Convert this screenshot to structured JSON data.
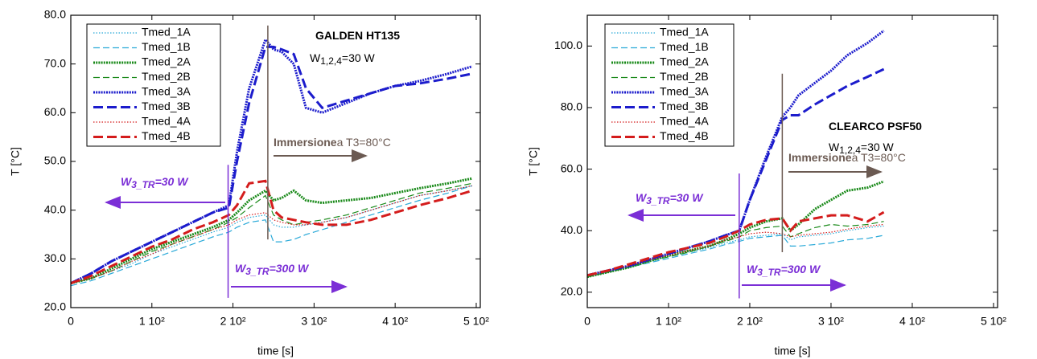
{
  "chart_data": [
    {
      "type": "line",
      "xlabel": "time [s]",
      "ylabel": "T [°C]",
      "xlim": [
        0,
        505
      ],
      "ylim": [
        20,
        80
      ],
      "xticks": [
        0,
        {
          "value": 100,
          "label": "1 10²"
        },
        {
          "value": 200,
          "label": "2 10²"
        },
        {
          "value": 300,
          "label": "3 10²"
        },
        {
          "value": 400,
          "label": "4 10²"
        },
        {
          "value": 500,
          "label": "5 10²"
        }
      ],
      "yticks": [
        {
          "value": 20,
          "label": "20.0"
        },
        {
          "value": 30,
          "label": "30.0"
        },
        {
          "value": 40,
          "label": "40.0"
        },
        {
          "value": 50,
          "label": "50.0"
        },
        {
          "value": 60,
          "label": "60.0"
        },
        {
          "value": 70,
          "label": "70.0"
        },
        {
          "value": 80,
          "label": "80.0"
        }
      ],
      "x": [
        0,
        25,
        50,
        75,
        100,
        125,
        150,
        175,
        195,
        205,
        220,
        240,
        250,
        260,
        275,
        290,
        310,
        340,
        370,
        400,
        430,
        465,
        495
      ],
      "series": [
        {
          "name": "Tmed_1A",
          "color": "#29a9d8",
          "style": "dotted-thin",
          "values": [
            25,
            26,
            27.5,
            29,
            31,
            32.5,
            34,
            35.5,
            36.5,
            37.5,
            38.5,
            39,
            37,
            36.5,
            36.5,
            37,
            37.5,
            38.5,
            40,
            41.5,
            43,
            44,
            45
          ]
        },
        {
          "name": "Tmed_1B",
          "color": "#29a9d8",
          "style": "dashed-thin",
          "values": [
            24.5,
            25.5,
            27,
            28.5,
            30,
            31.5,
            33,
            34.5,
            35.5,
            36.5,
            37.5,
            38,
            33.5,
            33.5,
            34,
            35,
            36,
            37.5,
            39,
            40.5,
            42,
            43.5,
            45
          ]
        },
        {
          "name": "Tmed_2A",
          "color": "#1a8a1a",
          "style": "dotted-thick",
          "values": [
            25,
            26,
            28,
            30,
            32,
            33.5,
            35,
            36.5,
            38,
            39.5,
            42,
            44,
            42,
            42.5,
            44,
            42,
            41.5,
            42,
            42.5,
            43.5,
            44.5,
            45.5,
            46.5
          ]
        },
        {
          "name": "Tmed_2B",
          "color": "#1a8a1a",
          "style": "dashed-thin",
          "values": [
            25,
            26,
            27.5,
            29.5,
            31.5,
            33,
            34.5,
            36,
            37.5,
            38.5,
            40.5,
            43,
            39,
            38,
            37,
            37.5,
            38,
            39,
            40.5,
            42,
            43.5,
            44.5,
            45.5
          ]
        },
        {
          "name": "Tmed_3A",
          "color": "#1c1ccc",
          "style": "dotted-thick",
          "values": [
            25,
            27,
            29.5,
            31.5,
            33.5,
            35.5,
            37.5,
            39.5,
            41,
            52,
            65,
            75,
            73,
            72.5,
            70,
            61,
            60,
            62,
            64,
            65.5,
            66.5,
            68,
            69.5
          ]
        },
        {
          "name": "Tmed_3B",
          "color": "#1c1ccc",
          "style": "dashed-thick",
          "values": [
            25,
            27,
            29.5,
            31.5,
            33.5,
            35.5,
            37.5,
            39.5,
            40.5,
            50,
            62,
            73.5,
            73.5,
            73,
            72,
            65,
            61,
            62.5,
            64,
            65.5,
            66,
            67,
            68
          ]
        },
        {
          "name": "Tmed_4A",
          "color": "#d41c1c",
          "style": "dotted-thin",
          "values": [
            25,
            26,
            27.5,
            29.5,
            31,
            33,
            34.5,
            36,
            37,
            38,
            39,
            39.5,
            38,
            37.5,
            37,
            37,
            37.5,
            38.5,
            40,
            41.5,
            43,
            44,
            45
          ]
        },
        {
          "name": "Tmed_4B",
          "color": "#d41c1c",
          "style": "dashed-thick",
          "values": [
            25,
            26.5,
            28.5,
            30.5,
            32.5,
            34,
            36,
            37.5,
            39,
            41,
            45.5,
            46,
            40,
            38.5,
            38,
            37.5,
            37,
            37,
            38,
            39.5,
            41,
            42.5,
            44
          ]
        }
      ],
      "event_lines": [
        {
          "x": 194,
          "from": 22,
          "to": 49.3,
          "color": "#7b2fd6"
        },
        {
          "x": 243,
          "from": 34,
          "to": 77.9,
          "color": "#6b5a52"
        }
      ],
      "annotations": [
        {
          "color": "#000000",
          "bold": true,
          "parts": [
            {
              "text": "GALDEN HT135"
            }
          ]
        },
        {
          "color": "#000000",
          "parts": [
            {
              "text": "W"
            },
            {
              "text": "1,2,4",
              "sub": true
            },
            {
              "text": "=30 W"
            }
          ]
        },
        {
          "color": "#6b5a52",
          "parts": [
            {
              "text": "Immersione",
              "bold": true
            },
            {
              "text": "a T3=80°C"
            }
          ]
        },
        {
          "color": "#7b2fd6",
          "bold": true,
          "italic": true,
          "parts": [
            {
              "text": "W"
            },
            {
              "text": "3_TR",
              "sub": true
            },
            {
              "text": "=30 W"
            }
          ]
        },
        {
          "color": "#7b2fd6",
          "bold": true,
          "italic": true,
          "parts": [
            {
              "text": "W"
            },
            {
              "text": "3_TR",
              "sub": true
            },
            {
              "text": "=300 W"
            }
          ]
        }
      ]
    },
    {
      "type": "line",
      "xlabel": "time [s]",
      "ylabel": "T [°C]",
      "xlim": [
        0,
        505
      ],
      "ylim": [
        15,
        110
      ],
      "xticks": [
        0,
        {
          "value": 100,
          "label": "1 10²"
        },
        {
          "value": 200,
          "label": "2 10²"
        },
        {
          "value": 300,
          "label": "3 10²"
        },
        {
          "value": 400,
          "label": "4 10²"
        },
        {
          "value": 500,
          "label": "5 10²"
        }
      ],
      "yticks": [
        {
          "value": 20,
          "label": "20.0"
        },
        {
          "value": 40,
          "label": "40.0"
        },
        {
          "value": 60,
          "label": "60.0"
        },
        {
          "value": 80,
          "label": "80.0"
        },
        {
          "value": 100,
          "label": "100.0"
        }
      ],
      "x": [
        0,
        25,
        50,
        75,
        100,
        125,
        150,
        170,
        187,
        200,
        220,
        240,
        250,
        260,
        280,
        300,
        320,
        345,
        365
      ],
      "series": [
        {
          "name": "Tmed_1A",
          "color": "#29a9d8",
          "style": "dotted-thin",
          "values": [
            25,
            26.5,
            28,
            30,
            31.5,
            33,
            34.5,
            36,
            37,
            38,
            38.5,
            39,
            37,
            38,
            38.5,
            39,
            40,
            41,
            41.5
          ]
        },
        {
          "name": "Tmed_1B",
          "color": "#29a9d8",
          "style": "dashed-thin",
          "values": [
            25,
            26.5,
            28,
            29.5,
            31,
            32.5,
            34,
            35.5,
            36.5,
            37.5,
            38,
            38.5,
            35,
            35,
            35.5,
            36,
            37,
            37.5,
            38.5
          ]
        },
        {
          "name": "Tmed_2A",
          "color": "#1a8a1a",
          "style": "dotted-thick",
          "values": [
            25,
            26.5,
            28,
            30,
            32,
            33.5,
            35,
            37,
            39,
            41,
            43,
            44,
            40,
            42,
            47,
            50,
            53,
            54,
            56
          ]
        },
        {
          "name": "Tmed_2B",
          "color": "#1a8a1a",
          "style": "dashed-thin",
          "values": [
            25,
            26.5,
            28,
            30,
            31.5,
            33,
            35,
            36.5,
            38,
            40,
            41,
            41.5,
            38,
            39,
            41,
            42,
            41.5,
            42,
            43
          ]
        },
        {
          "name": "Tmed_3A",
          "color": "#1c1ccc",
          "style": "dotted-thick",
          "values": [
            25.5,
            27,
            28.5,
            30.5,
            32.5,
            34.5,
            36.5,
            38.5,
            40,
            50,
            64,
            77,
            80,
            84,
            88,
            92,
            97,
            101,
            105
          ]
        },
        {
          "name": "Tmed_3B",
          "color": "#1c1ccc",
          "style": "dashed-thick",
          "values": [
            25.5,
            27,
            28.5,
            30.5,
            32.5,
            34.5,
            36.5,
            38.5,
            40,
            50,
            63,
            76,
            77.5,
            77.5,
            81,
            84,
            87,
            90,
            92.5
          ]
        },
        {
          "name": "Tmed_4A",
          "color": "#d41c1c",
          "style": "dotted-thin",
          "values": [
            25.5,
            27,
            28.5,
            30.5,
            32,
            33.5,
            35,
            37,
            38,
            39,
            39.5,
            39,
            38,
            38.5,
            39,
            39.5,
            40.5,
            41.5,
            42
          ]
        },
        {
          "name": "Tmed_4B",
          "color": "#d41c1c",
          "style": "dashed-thick",
          "values": [
            25.5,
            27,
            29,
            31,
            33,
            34.5,
            36,
            38,
            40,
            42,
            43.5,
            44,
            40,
            43,
            44,
            45,
            45,
            43,
            46
          ]
        }
      ],
      "event_lines": [
        {
          "x": 187,
          "from": 18,
          "to": 58.6,
          "color": "#7b2fd6"
        },
        {
          "x": 240,
          "from": 33,
          "to": 91,
          "color": "#6b5a52"
        }
      ],
      "annotations": [
        {
          "color": "#000000",
          "bold": true,
          "parts": [
            {
              "text": "CLEARCO  PSF50"
            }
          ]
        },
        {
          "color": "#000000",
          "parts": [
            {
              "text": "W"
            },
            {
              "text": "1,2,4",
              "sub": true
            },
            {
              "text": "=30 W"
            }
          ]
        },
        {
          "color": "#6b5a52",
          "parts": [
            {
              "text": "Immersione",
              "bold": true
            },
            {
              "text": "a T3=80°C"
            }
          ]
        },
        {
          "color": "#7b2fd6",
          "bold": true,
          "italic": true,
          "parts": [
            {
              "text": "W"
            },
            {
              "text": "3_TR",
              "sub": true
            },
            {
              "text": "=30 W"
            }
          ]
        },
        {
          "color": "#7b2fd6",
          "bold": true,
          "italic": true,
          "parts": [
            {
              "text": "W"
            },
            {
              "text": "3_TR",
              "sub": true
            },
            {
              "text": "=300 W"
            }
          ]
        }
      ]
    }
  ]
}
